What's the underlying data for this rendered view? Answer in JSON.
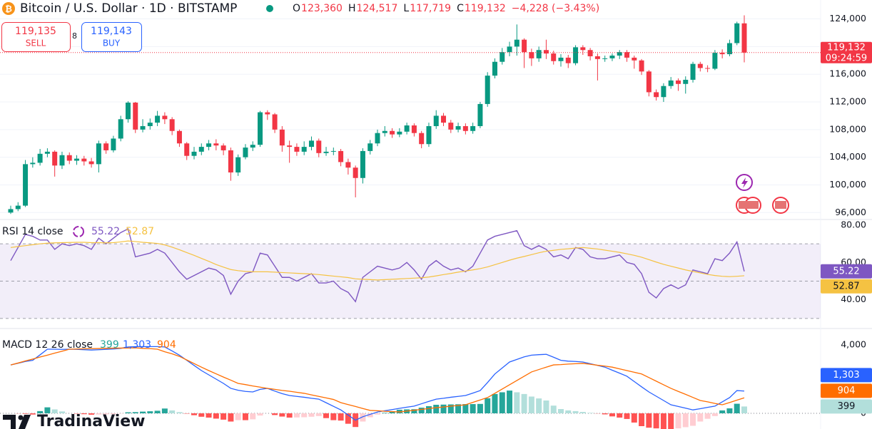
{
  "header": {
    "title": "Bitcoin / U.S. Dollar · 1D · BITSTAMP",
    "ohlc": [
      {
        "key": "O",
        "value": "123,360"
      },
      {
        "key": "H",
        "value": "124,517"
      },
      {
        "key": "L",
        "value": "117,719"
      },
      {
        "key": "C",
        "value": "119,132"
      }
    ],
    "change": "−4,228 (−3.43%)"
  },
  "trade": {
    "sell_price": "119,135",
    "sell": "SELL",
    "spread": "8",
    "buy_price": "119,143",
    "buy": "BUY"
  },
  "logo": "TradinaView",
  "chart_data": [
    {
      "type": "candlestick",
      "open": [
        96000,
        96500,
        97000,
        103000,
        103200,
        104500,
        104800,
        102800,
        104300,
        103500,
        103800,
        103400,
        103000,
        106000,
        105000,
        106700,
        109500,
        111900,
        108000,
        108500,
        109000,
        110000,
        109500,
        107800,
        106000,
        104200,
        104800,
        105500,
        106000,
        105700,
        105000,
        101800,
        104000,
        105400,
        105800,
        110500,
        110200,
        108000,
        105700,
        105500,
        104800,
        105500,
        106400,
        104600,
        104800,
        104900,
        103300,
        102500,
        101000,
        104900,
        106000,
        107500,
        107800,
        107300,
        107700,
        108600,
        107500,
        105900,
        108500,
        110000,
        109000,
        108000,
        108500,
        107800,
        108500,
        111700,
        115800,
        117800,
        119200,
        120000,
        121000,
        119200,
        118300,
        119500,
        119000,
        117900,
        118400,
        117600,
        119900,
        119500,
        118600,
        118200,
        118300,
        118700,
        119200,
        118400,
        118000,
        116400,
        113400,
        112700,
        114300,
        115100,
        114600,
        115200,
        117500,
        116900,
        116800,
        119100,
        118900,
        120500,
        123360
      ],
      "high": [
        97000,
        97500,
        103600,
        104000,
        105200,
        105300,
        105000,
        104800,
        104700,
        104300,
        104200,
        103900,
        106400,
        106300,
        107100,
        110000,
        112100,
        112000,
        109500,
        109600,
        110700,
        110500,
        109800,
        108000,
        106200,
        105500,
        106000,
        106500,
        106600,
        106000,
        105400,
        104400,
        105900,
        106300,
        110700,
        110800,
        110400,
        108500,
        106400,
        106000,
        106300,
        107000,
        106700,
        105500,
        105400,
        105200,
        103800,
        102800,
        105300,
        106500,
        108000,
        108500,
        108200,
        108200,
        109000,
        108900,
        107800,
        109000,
        110800,
        110400,
        109400,
        109000,
        108900,
        109000,
        112000,
        116300,
        118300,
        119800,
        120700,
        123200,
        121200,
        119700,
        120000,
        121000,
        119400,
        118900,
        118800,
        120200,
        120200,
        119800,
        119000,
        118700,
        119000,
        119500,
        119500,
        118700,
        118200,
        116600,
        113800,
        114700,
        115600,
        115400,
        115700,
        117800,
        117800,
        117300,
        119500,
        119600,
        121000,
        123600,
        124517
      ],
      "low": [
        95800,
        96200,
        96800,
        102500,
        102800,
        104000,
        101200,
        102300,
        103000,
        102900,
        102800,
        102500,
        101800,
        104500,
        104700,
        106300,
        109000,
        107500,
        107600,
        108000,
        108500,
        108800,
        107200,
        105500,
        103600,
        103700,
        104300,
        105000,
        105000,
        104300,
        100600,
        101300,
        103700,
        104900,
        105500,
        109400,
        107500,
        104800,
        103200,
        104200,
        104300,
        105000,
        104000,
        104200,
        104300,
        102700,
        101500,
        98200,
        100200,
        104400,
        105600,
        107000,
        106800,
        106900,
        107300,
        107000,
        105300,
        105500,
        108100,
        108500,
        107500,
        107600,
        107300,
        107400,
        108200,
        111300,
        115400,
        117400,
        118600,
        118700,
        116900,
        117200,
        117800,
        118200,
        117400,
        117100,
        116900,
        117300,
        118800,
        118000,
        115100,
        117800,
        117900,
        118200,
        117800,
        116800,
        115900,
        112800,
        112200,
        112000,
        113900,
        113600,
        113200,
        114800,
        116400,
        116300,
        116600,
        118300,
        118600,
        120200,
        117719
      ],
      "close": [
        96500,
        97000,
        103000,
        103200,
        104500,
        104800,
        102800,
        104300,
        103500,
        103800,
        103400,
        103000,
        106000,
        105000,
        106700,
        109500,
        111900,
        108000,
        108500,
        109000,
        110000,
        109500,
        107800,
        106000,
        104200,
        104800,
        105500,
        106000,
        105700,
        105000,
        101800,
        104000,
        105400,
        105800,
        110500,
        110200,
        108000,
        105700,
        105500,
        104800,
        105500,
        106400,
        104600,
        104800,
        104900,
        103300,
        102500,
        101000,
        104900,
        106000,
        107500,
        107800,
        107300,
        107700,
        108600,
        107500,
        105900,
        108500,
        110000,
        109000,
        108000,
        108500,
        107800,
        108500,
        111700,
        115800,
        117800,
        119200,
        120000,
        121000,
        119200,
        118300,
        119500,
        119000,
        117900,
        118400,
        117600,
        119900,
        119500,
        118600,
        118200,
        118300,
        118700,
        119200,
        118400,
        118000,
        116400,
        113400,
        112700,
        114300,
        115100,
        114600,
        115200,
        117500,
        116900,
        116800,
        119100,
        118900,
        120500,
        123360,
        119132
      ],
      "up_color": "#089981",
      "down_color": "#f23645",
      "ylim": [
        95000,
        125500
      ],
      "yticks": [
        {
          "value": 96000,
          "label": "96,000"
        },
        {
          "value": 100000,
          "label": "100,000"
        },
        {
          "value": 104000,
          "label": "104,000"
        },
        {
          "value": 108000,
          "label": "108,000"
        },
        {
          "value": 112000,
          "label": "112,000"
        },
        {
          "value": 116000,
          "label": "116,000"
        },
        {
          "value": 120000,
          "label": "120,000"
        },
        {
          "value": 124000,
          "label": "124,000"
        }
      ],
      "grid": true,
      "countdown": "09:24:59"
    },
    {
      "type": "line",
      "title": "RSI 14 close",
      "series": [
        {
          "color": "#7e57c2",
          "values": [
            61,
            68,
            75,
            74,
            72,
            72,
            67,
            70,
            69,
            70,
            69,
            67,
            73,
            70,
            73,
            76,
            78,
            63,
            64,
            65,
            67,
            65,
            60,
            55,
            51,
            53,
            55,
            57,
            56,
            53,
            43,
            50,
            54,
            55,
            65,
            64,
            58,
            52,
            52,
            50,
            52,
            54,
            49,
            49,
            50,
            46,
            44,
            39,
            52,
            55,
            58,
            57,
            56,
            57,
            60,
            56,
            51,
            58,
            61,
            58,
            56,
            57,
            55,
            58,
            65,
            72,
            74,
            75,
            76,
            77,
            69,
            67,
            69,
            67,
            63,
            64,
            62,
            68,
            67,
            63,
            62,
            62,
            63,
            64,
            60,
            59,
            54,
            44,
            41,
            46,
            48,
            46,
            48,
            56,
            55,
            54,
            62,
            61,
            65,
            71,
            55.22
          ]
        },
        {
          "color": "#f5c242",
          "values": [
            68,
            68.5,
            69,
            69.5,
            70,
            70.3,
            70.5,
            70.6,
            70.7,
            70.8,
            70.8,
            70.6,
            70.6,
            70.5,
            70.6,
            71,
            71.5,
            71.2,
            70.8,
            70.5,
            70.2,
            69.4,
            68.2,
            66.8,
            65.3,
            63.8,
            62.2,
            60.6,
            58.9,
            57.5,
            56.2,
            55.6,
            55.2,
            55,
            55,
            55,
            54.8,
            54.6,
            54.4,
            54.2,
            54,
            53.8,
            53.5,
            53.1,
            52.7,
            52.3,
            51.9,
            51.2,
            51,
            50.8,
            50.6,
            50.8,
            51,
            51.2,
            51.4,
            51.6,
            51.8,
            52.2,
            52.8,
            53.5,
            54.1,
            54.8,
            55.4,
            56,
            56.7,
            57.6,
            58.8,
            60,
            61.2,
            62.3,
            63.2,
            64.2,
            65.2,
            66,
            66.5,
            67,
            67.3,
            67.7,
            68,
            67.6,
            67.2,
            66.6,
            66,
            65.4,
            64.6,
            63.8,
            62.8,
            61.5,
            60.2,
            59,
            58,
            57,
            56,
            55.2,
            54.4,
            53.6,
            53,
            52.6,
            52.4,
            52.6,
            52.87
          ]
        }
      ],
      "ylim": [
        25,
        83
      ],
      "yticks": [
        {
          "value": 40,
          "label": "40.00"
        },
        {
          "value": 60,
          "label": "60.00"
        },
        {
          "value": 80,
          "label": "80.00"
        }
      ],
      "levels": [
        30,
        50,
        70
      ],
      "band_color": "#7e57c2"
    },
    {
      "type": "macd",
      "title": "MACD 12 26 close",
      "histogram": {
        "values": [
          0,
          -10,
          -30,
          -70,
          130,
          350,
          230,
          110,
          0,
          -20,
          -50,
          -80,
          -70,
          -60,
          -50,
          -15,
          60,
          70,
          100,
          120,
          150,
          280,
          170,
          70,
          -20,
          -110,
          -200,
          -250,
          -310,
          -370,
          -480,
          -400,
          -400,
          -350,
          -130,
          0,
          -100,
          -190,
          -250,
          -240,
          -230,
          -200,
          -160,
          -280,
          -400,
          -425,
          -610,
          -800,
          -480,
          -230,
          -70,
          30,
          120,
          210,
          230,
          240,
          330,
          420,
          500,
          510,
          520,
          530,
          540,
          540,
          550,
          880,
          1130,
          1230,
          1330,
          1230,
          1130,
          980,
          870,
          750,
          450,
          250,
          170,
          130,
          80,
          30,
          -10,
          -60,
          -180,
          -250,
          -330,
          -540,
          -750,
          -840,
          -880,
          -920,
          -960,
          -880,
          -810,
          -730,
          -480,
          -320,
          -160,
          170,
          290,
          560,
          399
        ],
        "up_color": "#26a69a",
        "up_fade": "#b2dfdb",
        "down_color": "#ff5252",
        "down_fade": "#ffcdd2"
      },
      "series": [
        {
          "color": "#2962ff",
          "values": [
            2830,
            2930,
            3030,
            3100,
            3420,
            3750,
            3750,
            3740,
            3750,
            3740,
            3720,
            3700,
            3720,
            3740,
            3760,
            3800,
            3880,
            3900,
            3900,
            3900,
            3900,
            3880,
            3650,
            3400,
            3100,
            2800,
            2500,
            2250,
            2000,
            1750,
            1460,
            1350,
            1280,
            1250,
            1400,
            1460,
            1300,
            1150,
            1040,
            990,
            940,
            880,
            830,
            620,
            410,
            200,
            -100,
            -400,
            -200,
            -60,
            80,
            150,
            220,
            290,
            360,
            420,
            560,
            700,
            830,
            880,
            940,
            990,
            1040,
            1180,
            1330,
            1800,
            2300,
            2650,
            3000,
            3150,
            3300,
            3400,
            3430,
            3450,
            3280,
            3100,
            3050,
            3030,
            3000,
            2900,
            2800,
            2700,
            2520,
            2350,
            2170,
            1860,
            1550,
            1250,
            1000,
            750,
            500,
            400,
            300,
            200,
            270,
            350,
            420,
            670,
            920,
            1330,
            1303
          ],
          "last_label": "1,303"
        },
        {
          "color": "#ff6d00",
          "values": [
            2830,
            2940,
            3060,
            3170,
            3290,
            3400,
            3520,
            3630,
            3750,
            3760,
            3770,
            3780,
            3790,
            3800,
            3810,
            3815,
            3820,
            3830,
            3800,
            3780,
            3750,
            3600,
            3480,
            3330,
            3120,
            2910,
            2700,
            2500,
            2310,
            2120,
            1940,
            1750,
            1680,
            1600,
            1530,
            1460,
            1400,
            1340,
            1290,
            1230,
            1170,
            1080,
            990,
            900,
            810,
            625,
            510,
            400,
            280,
            170,
            150,
            120,
            100,
            80,
            130,
            180,
            230,
            280,
            330,
            370,
            420,
            460,
            500,
            640,
            780,
            920,
            1170,
            1420,
            1670,
            1920,
            2170,
            2420,
            2560,
            2700,
            2830,
            2850,
            2880,
            2900,
            2920,
            2870,
            2810,
            2760,
            2700,
            2600,
            2500,
            2400,
            2300,
            2090,
            1880,
            1670,
            1460,
            1280,
            1110,
            930,
            750,
            670,
            580,
            500,
            630,
            770,
            904
          ]
        }
      ],
      "ylim": [
        -900,
        4900
      ],
      "yticks": [
        0,
        {
          "value": 4000,
          "label": "4,000"
        }
      ]
    }
  ]
}
